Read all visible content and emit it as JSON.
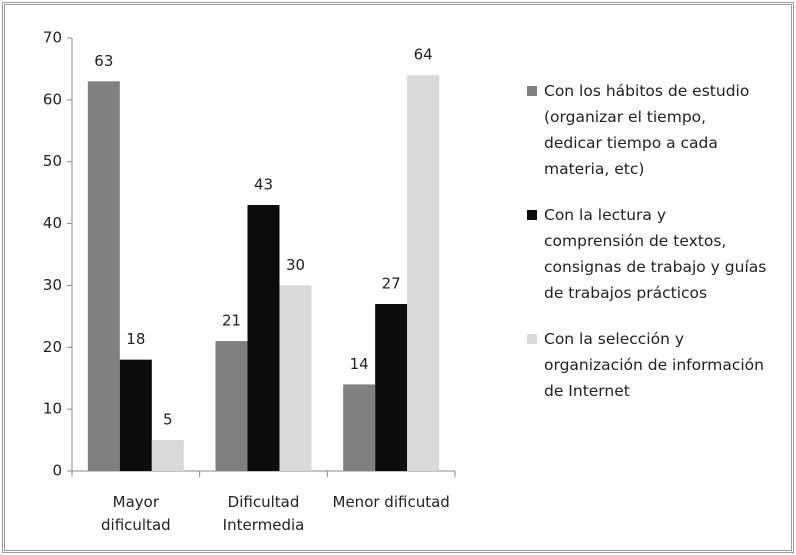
{
  "chart_data": {
    "type": "bar",
    "categories": [
      "Mayor dificultad",
      "Dificultad Intermedia",
      "Menor dificutad"
    ],
    "series": [
      {
        "name": "Con los hábitos de estudio (organizar el tiempo, dedicar tiempo a cada materia, etc)",
        "color": "#808080",
        "values": [
          63,
          21,
          14
        ]
      },
      {
        "name": "Con la lectura y comprensión de textos, consignas de trabajo y guías de trabajos prácticos",
        "color": "#0d0d0d",
        "values": [
          18,
          43,
          27
        ]
      },
      {
        "name": "Con la selección y organización de información de Internet",
        "color": "#d9d9d9",
        "values": [
          5,
          30,
          64
        ]
      }
    ],
    "ylim": [
      0,
      70
    ],
    "yticks": [
      0,
      10,
      20,
      30,
      40,
      50,
      60,
      70
    ],
    "grid": false,
    "legend": "right"
  }
}
